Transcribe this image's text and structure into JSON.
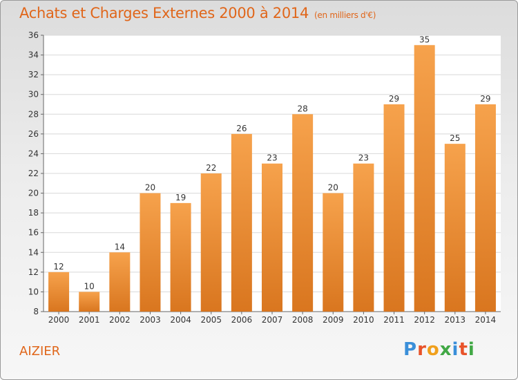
{
  "title": "Achats et Charges Externes 2000 à 2014",
  "unit": "(en milliers d'€)",
  "place": "AIZIER",
  "logo": {
    "letters": [
      "P",
      "r",
      "o",
      "x",
      "i",
      "t",
      "i"
    ],
    "colors": [
      "#3a8fd9",
      "#e8532a",
      "#f0a01c",
      "#41a845",
      "#3a8fd9",
      "#e8532a",
      "#41a845"
    ]
  },
  "colors": {
    "title": "#e0661a",
    "bar_light": "#f6a24c",
    "bar_dark": "#d9761f"
  },
  "chart_data": {
    "type": "bar",
    "categories": [
      "2000",
      "2001",
      "2002",
      "2003",
      "2004",
      "2005",
      "2006",
      "2007",
      "2008",
      "2009",
      "2010",
      "2011",
      "2012",
      "2013",
      "2014"
    ],
    "values": [
      12,
      10,
      14,
      20,
      19,
      22,
      26,
      23,
      28,
      20,
      23,
      29,
      35,
      25,
      29
    ],
    "ylim": [
      8,
      36
    ],
    "yticks": [
      8,
      10,
      12,
      14,
      16,
      18,
      20,
      22,
      24,
      26,
      28,
      30,
      32,
      34,
      36
    ],
    "grid": true,
    "xlabel": "",
    "ylabel": ""
  }
}
